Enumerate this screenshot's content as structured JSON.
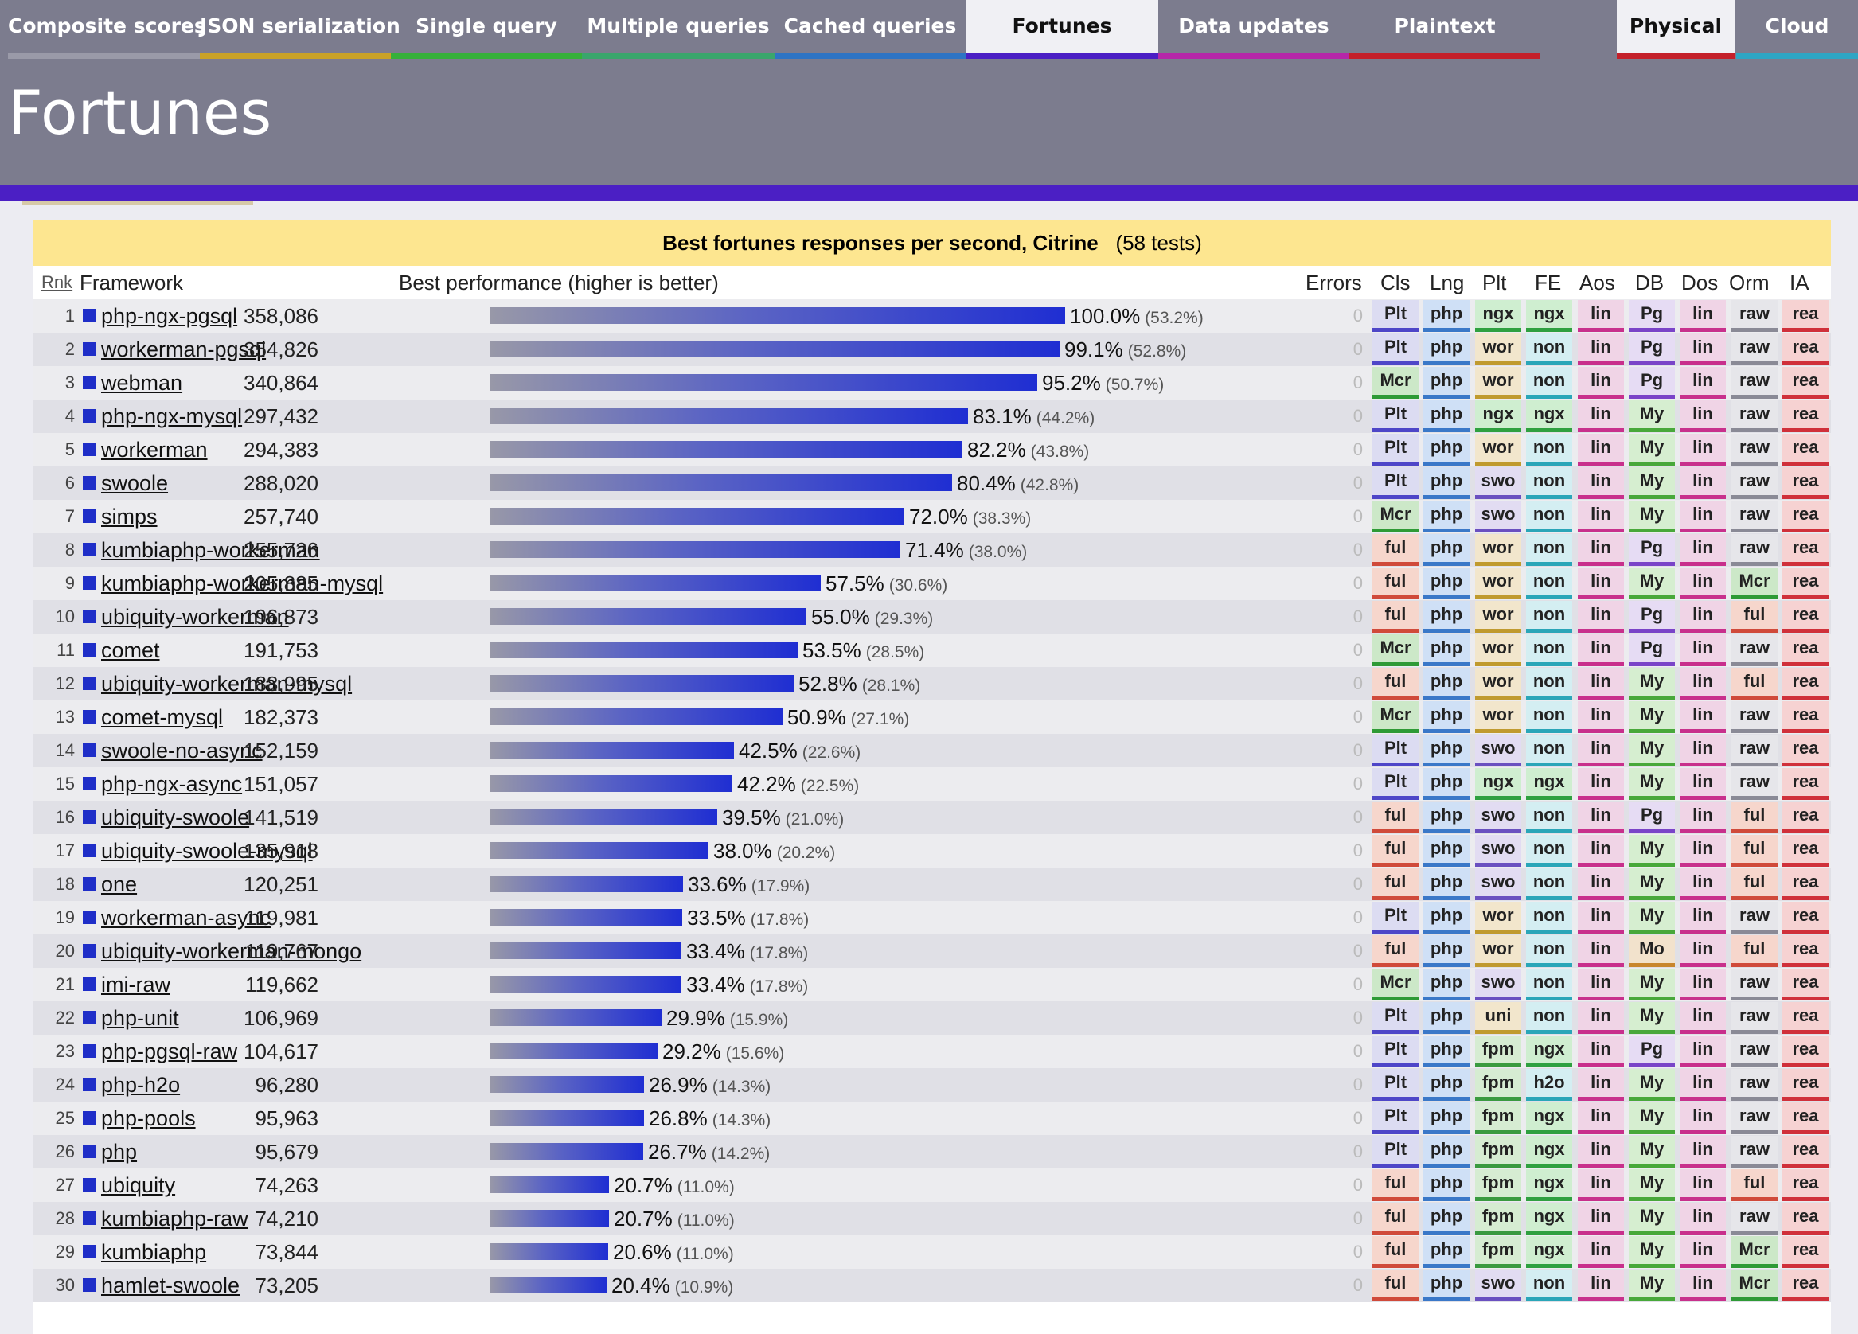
{
  "tabs": [
    {
      "label": "Composite scores",
      "color": "#9a9aa8",
      "active": false
    },
    {
      "label": "JSON serialization",
      "color": "#c9a227",
      "active": false
    },
    {
      "label": "Single query",
      "color": "#36b03a",
      "active": false
    },
    {
      "label": "Multiple queries",
      "color": "#3aa66c",
      "active": false
    },
    {
      "label": "Cached queries",
      "color": "#2e74c4",
      "active": false
    },
    {
      "label": "Fortunes",
      "color": "#4b1fc4",
      "active": true
    },
    {
      "label": "Data updates",
      "color": "#b627a8",
      "active": false
    },
    {
      "label": "Plaintext",
      "color": "#c4202a",
      "active": false
    },
    {
      "label": "Physical",
      "color": "#c4202a",
      "active": true
    },
    {
      "label": "Cloud",
      "color": "#2ea6c4",
      "active": false
    }
  ],
  "page_title": "Fortunes",
  "panel": {
    "title_bold": "Best fortunes responses per second, Citrine",
    "title_count": "(58 tests)"
  },
  "columns": {
    "rank": "Rnk",
    "framework": "Framework",
    "performance": "Best performance (higher is better)",
    "errors": "Errors",
    "cls": "Cls",
    "lng": "Lng",
    "plt": "Plt",
    "fe": "FE",
    "aos": "Aos",
    "db": "DB",
    "dos": "Dos",
    "orm": "Orm",
    "ia": "IA"
  },
  "tag_colors": {
    "Plt": {
      "bg": "#dcdcf2",
      "line": "#4e46c8"
    },
    "Mcr": {
      "bg": "#cce8c8",
      "line": "#2e9a36"
    },
    "ful": {
      "bg": "#f6d6cc",
      "line": "#d04a3a"
    },
    "php": {
      "bg": "#cfe0f6",
      "line": "#3a78c8"
    },
    "ngx": {
      "bg": "#cfeed0",
      "line": "#2fa040"
    },
    "wor": {
      "bg": "#f2e6cc",
      "line": "#c09a2e"
    },
    "swo": {
      "bg": "#e2dcf2",
      "line": "#6a50c0"
    },
    "uni": {
      "bg": "#f2e6cc",
      "line": "#c09a2e"
    },
    "fpm": {
      "bg": "#d6ecd2",
      "line": "#3a9a40"
    },
    "non": {
      "bg": "#d4eef2",
      "line": "#2aa6b8"
    },
    "h2o": {
      "bg": "#d4eef2",
      "line": "#2aa6b8"
    },
    "lin": {
      "bg": "#f0d4e6",
      "line": "#c8308c"
    },
    "Pg": {
      "bg": "#e6dcf4",
      "line": "#7a44c8"
    },
    "My": {
      "bg": "#d6eed0",
      "line": "#48a83a"
    },
    "Mo": {
      "bg": "#f2e2cc",
      "line": "#c8862e"
    },
    "raw": {
      "bg": "#e6e6ea",
      "line": "#8a8a96"
    },
    "rea": {
      "bg": "#f6d2d2",
      "line": "#d0303a"
    }
  },
  "rows": [
    {
      "rank": "1",
      "name": "php-ngx-pgsql",
      "value": "358,086",
      "pct": "100.0%",
      "sub": "(53.2%)",
      "frac": 1.0,
      "err": "0",
      "tags": [
        "Plt",
        "php",
        "ngx",
        "ngx",
        "lin",
        "Pg",
        "lin",
        "raw",
        "rea"
      ]
    },
    {
      "rank": "2",
      "name": "workerman-pgsql",
      "value": "354,826",
      "pct": "99.1%",
      "sub": "(52.8%)",
      "frac": 0.991,
      "err": "0",
      "tags": [
        "Plt",
        "php",
        "wor",
        "non",
        "lin",
        "Pg",
        "lin",
        "raw",
        "rea"
      ]
    },
    {
      "rank": "3",
      "name": "webman",
      "value": "340,864",
      "pct": "95.2%",
      "sub": "(50.7%)",
      "frac": 0.952,
      "err": "0",
      "tags": [
        "Mcr",
        "php",
        "wor",
        "non",
        "lin",
        "Pg",
        "lin",
        "raw",
        "rea"
      ]
    },
    {
      "rank": "4",
      "name": "php-ngx-mysql",
      "value": "297,432",
      "pct": "83.1%",
      "sub": "(44.2%)",
      "frac": 0.831,
      "err": "0",
      "tags": [
        "Plt",
        "php",
        "ngx",
        "ngx",
        "lin",
        "My",
        "lin",
        "raw",
        "rea"
      ]
    },
    {
      "rank": "5",
      "name": "workerman",
      "value": "294,383",
      "pct": "82.2%",
      "sub": "(43.8%)",
      "frac": 0.822,
      "err": "0",
      "tags": [
        "Plt",
        "php",
        "wor",
        "non",
        "lin",
        "My",
        "lin",
        "raw",
        "rea"
      ]
    },
    {
      "rank": "6",
      "name": "swoole",
      "value": "288,020",
      "pct": "80.4%",
      "sub": "(42.8%)",
      "frac": 0.804,
      "err": "0",
      "tags": [
        "Plt",
        "php",
        "swo",
        "non",
        "lin",
        "My",
        "lin",
        "raw",
        "rea"
      ]
    },
    {
      "rank": "7",
      "name": "simps",
      "value": "257,740",
      "pct": "72.0%",
      "sub": "(38.3%)",
      "frac": 0.72,
      "err": "0",
      "tags": [
        "Mcr",
        "php",
        "swo",
        "non",
        "lin",
        "My",
        "lin",
        "raw",
        "rea"
      ]
    },
    {
      "rank": "8",
      "name": "kumbiaphp-workerman",
      "value": "255,726",
      "pct": "71.4%",
      "sub": "(38.0%)",
      "frac": 0.714,
      "err": "0",
      "tags": [
        "ful",
        "php",
        "wor",
        "non",
        "lin",
        "Pg",
        "lin",
        "raw",
        "rea"
      ]
    },
    {
      "rank": "9",
      "name": "kumbiaphp-workerman-mysql",
      "value": "205,885",
      "pct": "57.5%",
      "sub": "(30.6%)",
      "frac": 0.575,
      "err": "0",
      "tags": [
        "ful",
        "php",
        "wor",
        "non",
        "lin",
        "My",
        "lin",
        "Mcr",
        "rea"
      ]
    },
    {
      "rank": "10",
      "name": "ubiquity-workerman",
      "value": "196,873",
      "pct": "55.0%",
      "sub": "(29.3%)",
      "frac": 0.55,
      "err": "0",
      "tags": [
        "ful",
        "php",
        "wor",
        "non",
        "lin",
        "Pg",
        "lin",
        "ful",
        "rea"
      ]
    },
    {
      "rank": "11",
      "name": "comet",
      "value": "191,753",
      "pct": "53.5%",
      "sub": "(28.5%)",
      "frac": 0.535,
      "err": "0",
      "tags": [
        "Mcr",
        "php",
        "wor",
        "non",
        "lin",
        "Pg",
        "lin",
        "raw",
        "rea"
      ]
    },
    {
      "rank": "12",
      "name": "ubiquity-workerman-mysql",
      "value": "188,995",
      "pct": "52.8%",
      "sub": "(28.1%)",
      "frac": 0.528,
      "err": "0",
      "tags": [
        "ful",
        "php",
        "wor",
        "non",
        "lin",
        "My",
        "lin",
        "ful",
        "rea"
      ]
    },
    {
      "rank": "13",
      "name": "comet-mysql",
      "value": "182,373",
      "pct": "50.9%",
      "sub": "(27.1%)",
      "frac": 0.509,
      "err": "0",
      "tags": [
        "Mcr",
        "php",
        "wor",
        "non",
        "lin",
        "My",
        "lin",
        "raw",
        "rea"
      ]
    },
    {
      "rank": "14",
      "name": "swoole-no-async",
      "value": "152,159",
      "pct": "42.5%",
      "sub": "(22.6%)",
      "frac": 0.425,
      "err": "0",
      "tags": [
        "Plt",
        "php",
        "swo",
        "non",
        "lin",
        "My",
        "lin",
        "raw",
        "rea"
      ]
    },
    {
      "rank": "15",
      "name": "php-ngx-async",
      "value": "151,057",
      "pct": "42.2%",
      "sub": "(22.5%)",
      "frac": 0.422,
      "err": "0",
      "tags": [
        "Plt",
        "php",
        "ngx",
        "ngx",
        "lin",
        "My",
        "lin",
        "raw",
        "rea"
      ]
    },
    {
      "rank": "16",
      "name": "ubiquity-swoole",
      "value": "141,519",
      "pct": "39.5%",
      "sub": "(21.0%)",
      "frac": 0.395,
      "err": "0",
      "tags": [
        "ful",
        "php",
        "swo",
        "non",
        "lin",
        "Pg",
        "lin",
        "ful",
        "rea"
      ]
    },
    {
      "rank": "17",
      "name": "ubiquity-swoole-mysql",
      "value": "135,918",
      "pct": "38.0%",
      "sub": "(20.2%)",
      "frac": 0.38,
      "err": "0",
      "tags": [
        "ful",
        "php",
        "swo",
        "non",
        "lin",
        "My",
        "lin",
        "ful",
        "rea"
      ]
    },
    {
      "rank": "18",
      "name": "one",
      "value": "120,251",
      "pct": "33.6%",
      "sub": "(17.9%)",
      "frac": 0.336,
      "err": "0",
      "tags": [
        "ful",
        "php",
        "swo",
        "non",
        "lin",
        "My",
        "lin",
        "ful",
        "rea"
      ]
    },
    {
      "rank": "19",
      "name": "workerman-async",
      "value": "119,981",
      "pct": "33.5%",
      "sub": "(17.8%)",
      "frac": 0.335,
      "err": "0",
      "tags": [
        "Plt",
        "php",
        "wor",
        "non",
        "lin",
        "My",
        "lin",
        "raw",
        "rea"
      ]
    },
    {
      "rank": "20",
      "name": "ubiquity-workerman-mongo",
      "value": "119,767",
      "pct": "33.4%",
      "sub": "(17.8%)",
      "frac": 0.334,
      "err": "0",
      "tags": [
        "ful",
        "php",
        "wor",
        "non",
        "lin",
        "Mo",
        "lin",
        "ful",
        "rea"
      ]
    },
    {
      "rank": "21",
      "name": "imi-raw",
      "value": "119,662",
      "pct": "33.4%",
      "sub": "(17.8%)",
      "frac": 0.334,
      "err": "0",
      "tags": [
        "Mcr",
        "php",
        "swo",
        "non",
        "lin",
        "My",
        "lin",
        "raw",
        "rea"
      ]
    },
    {
      "rank": "22",
      "name": "php-unit",
      "value": "106,969",
      "pct": "29.9%",
      "sub": "(15.9%)",
      "frac": 0.299,
      "err": "0",
      "tags": [
        "Plt",
        "php",
        "uni",
        "non",
        "lin",
        "My",
        "lin",
        "raw",
        "rea"
      ]
    },
    {
      "rank": "23",
      "name": "php-pgsql-raw",
      "value": "104,617",
      "pct": "29.2%",
      "sub": "(15.6%)",
      "frac": 0.292,
      "err": "0",
      "tags": [
        "Plt",
        "php",
        "fpm",
        "ngx",
        "lin",
        "Pg",
        "lin",
        "raw",
        "rea"
      ]
    },
    {
      "rank": "24",
      "name": "php-h2o",
      "value": "96,280",
      "pct": "26.9%",
      "sub": "(14.3%)",
      "frac": 0.269,
      "err": "0",
      "tags": [
        "Plt",
        "php",
        "fpm",
        "h2o",
        "lin",
        "My",
        "lin",
        "raw",
        "rea"
      ]
    },
    {
      "rank": "25",
      "name": "php-pools",
      "value": "95,963",
      "pct": "26.8%",
      "sub": "(14.3%)",
      "frac": 0.268,
      "err": "0",
      "tags": [
        "Plt",
        "php",
        "fpm",
        "ngx",
        "lin",
        "My",
        "lin",
        "raw",
        "rea"
      ]
    },
    {
      "rank": "26",
      "name": "php",
      "value": "95,679",
      "pct": "26.7%",
      "sub": "(14.2%)",
      "frac": 0.267,
      "err": "0",
      "tags": [
        "Plt",
        "php",
        "fpm",
        "ngx",
        "lin",
        "My",
        "lin",
        "raw",
        "rea"
      ]
    },
    {
      "rank": "27",
      "name": "ubiquity",
      "value": "74,263",
      "pct": "20.7%",
      "sub": "(11.0%)",
      "frac": 0.207,
      "err": "0",
      "tags": [
        "ful",
        "php",
        "fpm",
        "ngx",
        "lin",
        "My",
        "lin",
        "ful",
        "rea"
      ]
    },
    {
      "rank": "28",
      "name": "kumbiaphp-raw",
      "value": "74,210",
      "pct": "20.7%",
      "sub": "(11.0%)",
      "frac": 0.207,
      "err": "0",
      "tags": [
        "ful",
        "php",
        "fpm",
        "ngx",
        "lin",
        "My",
        "lin",
        "raw",
        "rea"
      ]
    },
    {
      "rank": "29",
      "name": "kumbiaphp",
      "value": "73,844",
      "pct": "20.6%",
      "sub": "(11.0%)",
      "frac": 0.206,
      "err": "0",
      "tags": [
        "ful",
        "php",
        "fpm",
        "ngx",
        "lin",
        "My",
        "lin",
        "Mcr",
        "rea"
      ]
    },
    {
      "rank": "30",
      "name": "hamlet-swoole",
      "value": "73,205",
      "pct": "20.4%",
      "sub": "(10.9%)",
      "frac": 0.204,
      "err": "0",
      "tags": [
        "ful",
        "php",
        "swo",
        "non",
        "lin",
        "My",
        "lin",
        "Mcr",
        "rea"
      ]
    }
  ]
}
